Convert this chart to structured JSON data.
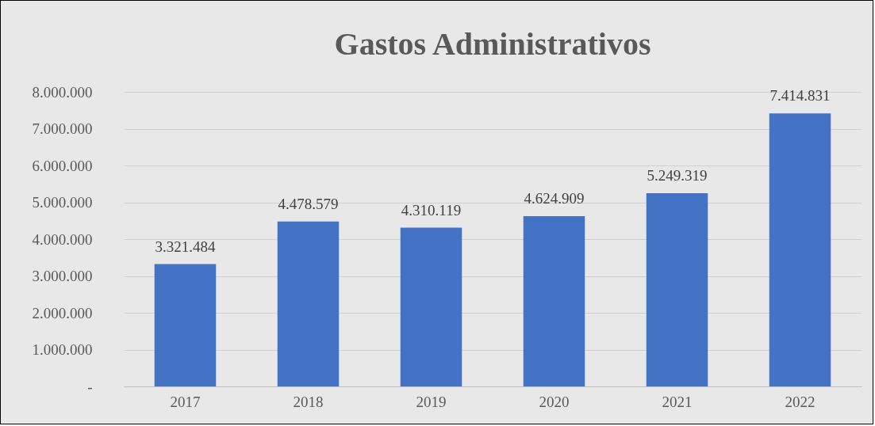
{
  "chart_data": {
    "type": "bar",
    "title": "Gastos Administrativos",
    "categories": [
      "2017",
      "2018",
      "2019",
      "2020",
      "2021",
      "2022"
    ],
    "values": [
      3321484,
      4478579,
      4310119,
      4624909,
      5249319,
      7414831
    ],
    "value_labels": [
      "3.321.484",
      "4.478.579",
      "4.310.119",
      "4.624.909",
      "5.249.319",
      "7.414.831"
    ],
    "color": "#4472c4",
    "ylim": [
      0,
      8000000
    ],
    "yticks": [
      {
        "value": 0,
        "label": "-"
      },
      {
        "value": 1000000,
        "label": "1.000.000"
      },
      {
        "value": 2000000,
        "label": "2.000.000"
      },
      {
        "value": 3000000,
        "label": "3.000.000"
      },
      {
        "value": 4000000,
        "label": "4.000.000"
      },
      {
        "value": 5000000,
        "label": "5.000.000"
      },
      {
        "value": 6000000,
        "label": "6.000.000"
      },
      {
        "value": 7000000,
        "label": "7.000.000"
      },
      {
        "value": 8000000,
        "label": "8.000.000"
      }
    ],
    "grid": "y"
  }
}
